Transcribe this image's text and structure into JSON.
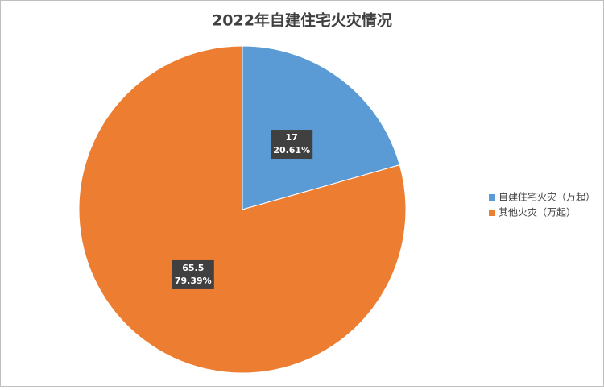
{
  "chart_data": {
    "type": "pie",
    "title": "2022年自建住宅火灾情况",
    "categories": [
      "自建住宅火灾（万起）",
      "其他火灾（万起）"
    ],
    "values": [
      17,
      65.5
    ],
    "percent_labels": [
      "20.61%",
      "79.39%"
    ],
    "colors": [
      "#5b9bd5",
      "#ed7d31"
    ],
    "legend": "right"
  }
}
